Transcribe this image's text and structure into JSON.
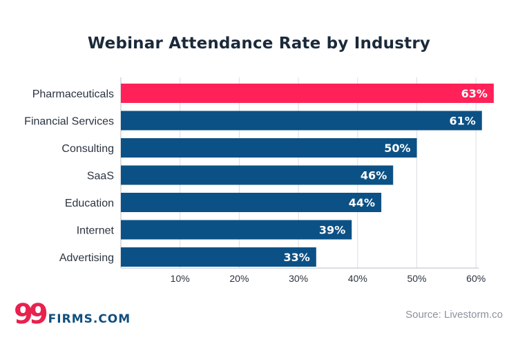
{
  "chart_data": {
    "type": "bar",
    "orientation": "horizontal",
    "title": "Webinar Attendance Rate by Industry",
    "categories": [
      "Pharmaceuticals",
      "Financial Services",
      "Consulting",
      "SaaS",
      "Education",
      "Internet",
      "Advertising"
    ],
    "values": [
      63,
      61,
      50,
      46,
      44,
      39,
      33
    ],
    "value_labels": [
      "63%",
      "61%",
      "50%",
      "46%",
      "44%",
      "39%",
      "33%"
    ],
    "x_ticks": [
      10,
      20,
      30,
      40,
      50,
      60
    ],
    "x_tick_labels": [
      "10%",
      "20%",
      "30%",
      "40%",
      "50%",
      "60%"
    ],
    "xlim": [
      0,
      60
    ],
    "xlabel": "",
    "ylabel": "",
    "grid": "vertical",
    "colors": {
      "highlight": "#ff2157",
      "bar": "#0c5185",
      "grid": "#d9dde2",
      "axis": "#b8bec6"
    },
    "highlight_index": 0
  },
  "branding": {
    "logo_number": "99",
    "logo_text": "FIRMS.COM"
  },
  "source": "Source: Livestorm.co"
}
